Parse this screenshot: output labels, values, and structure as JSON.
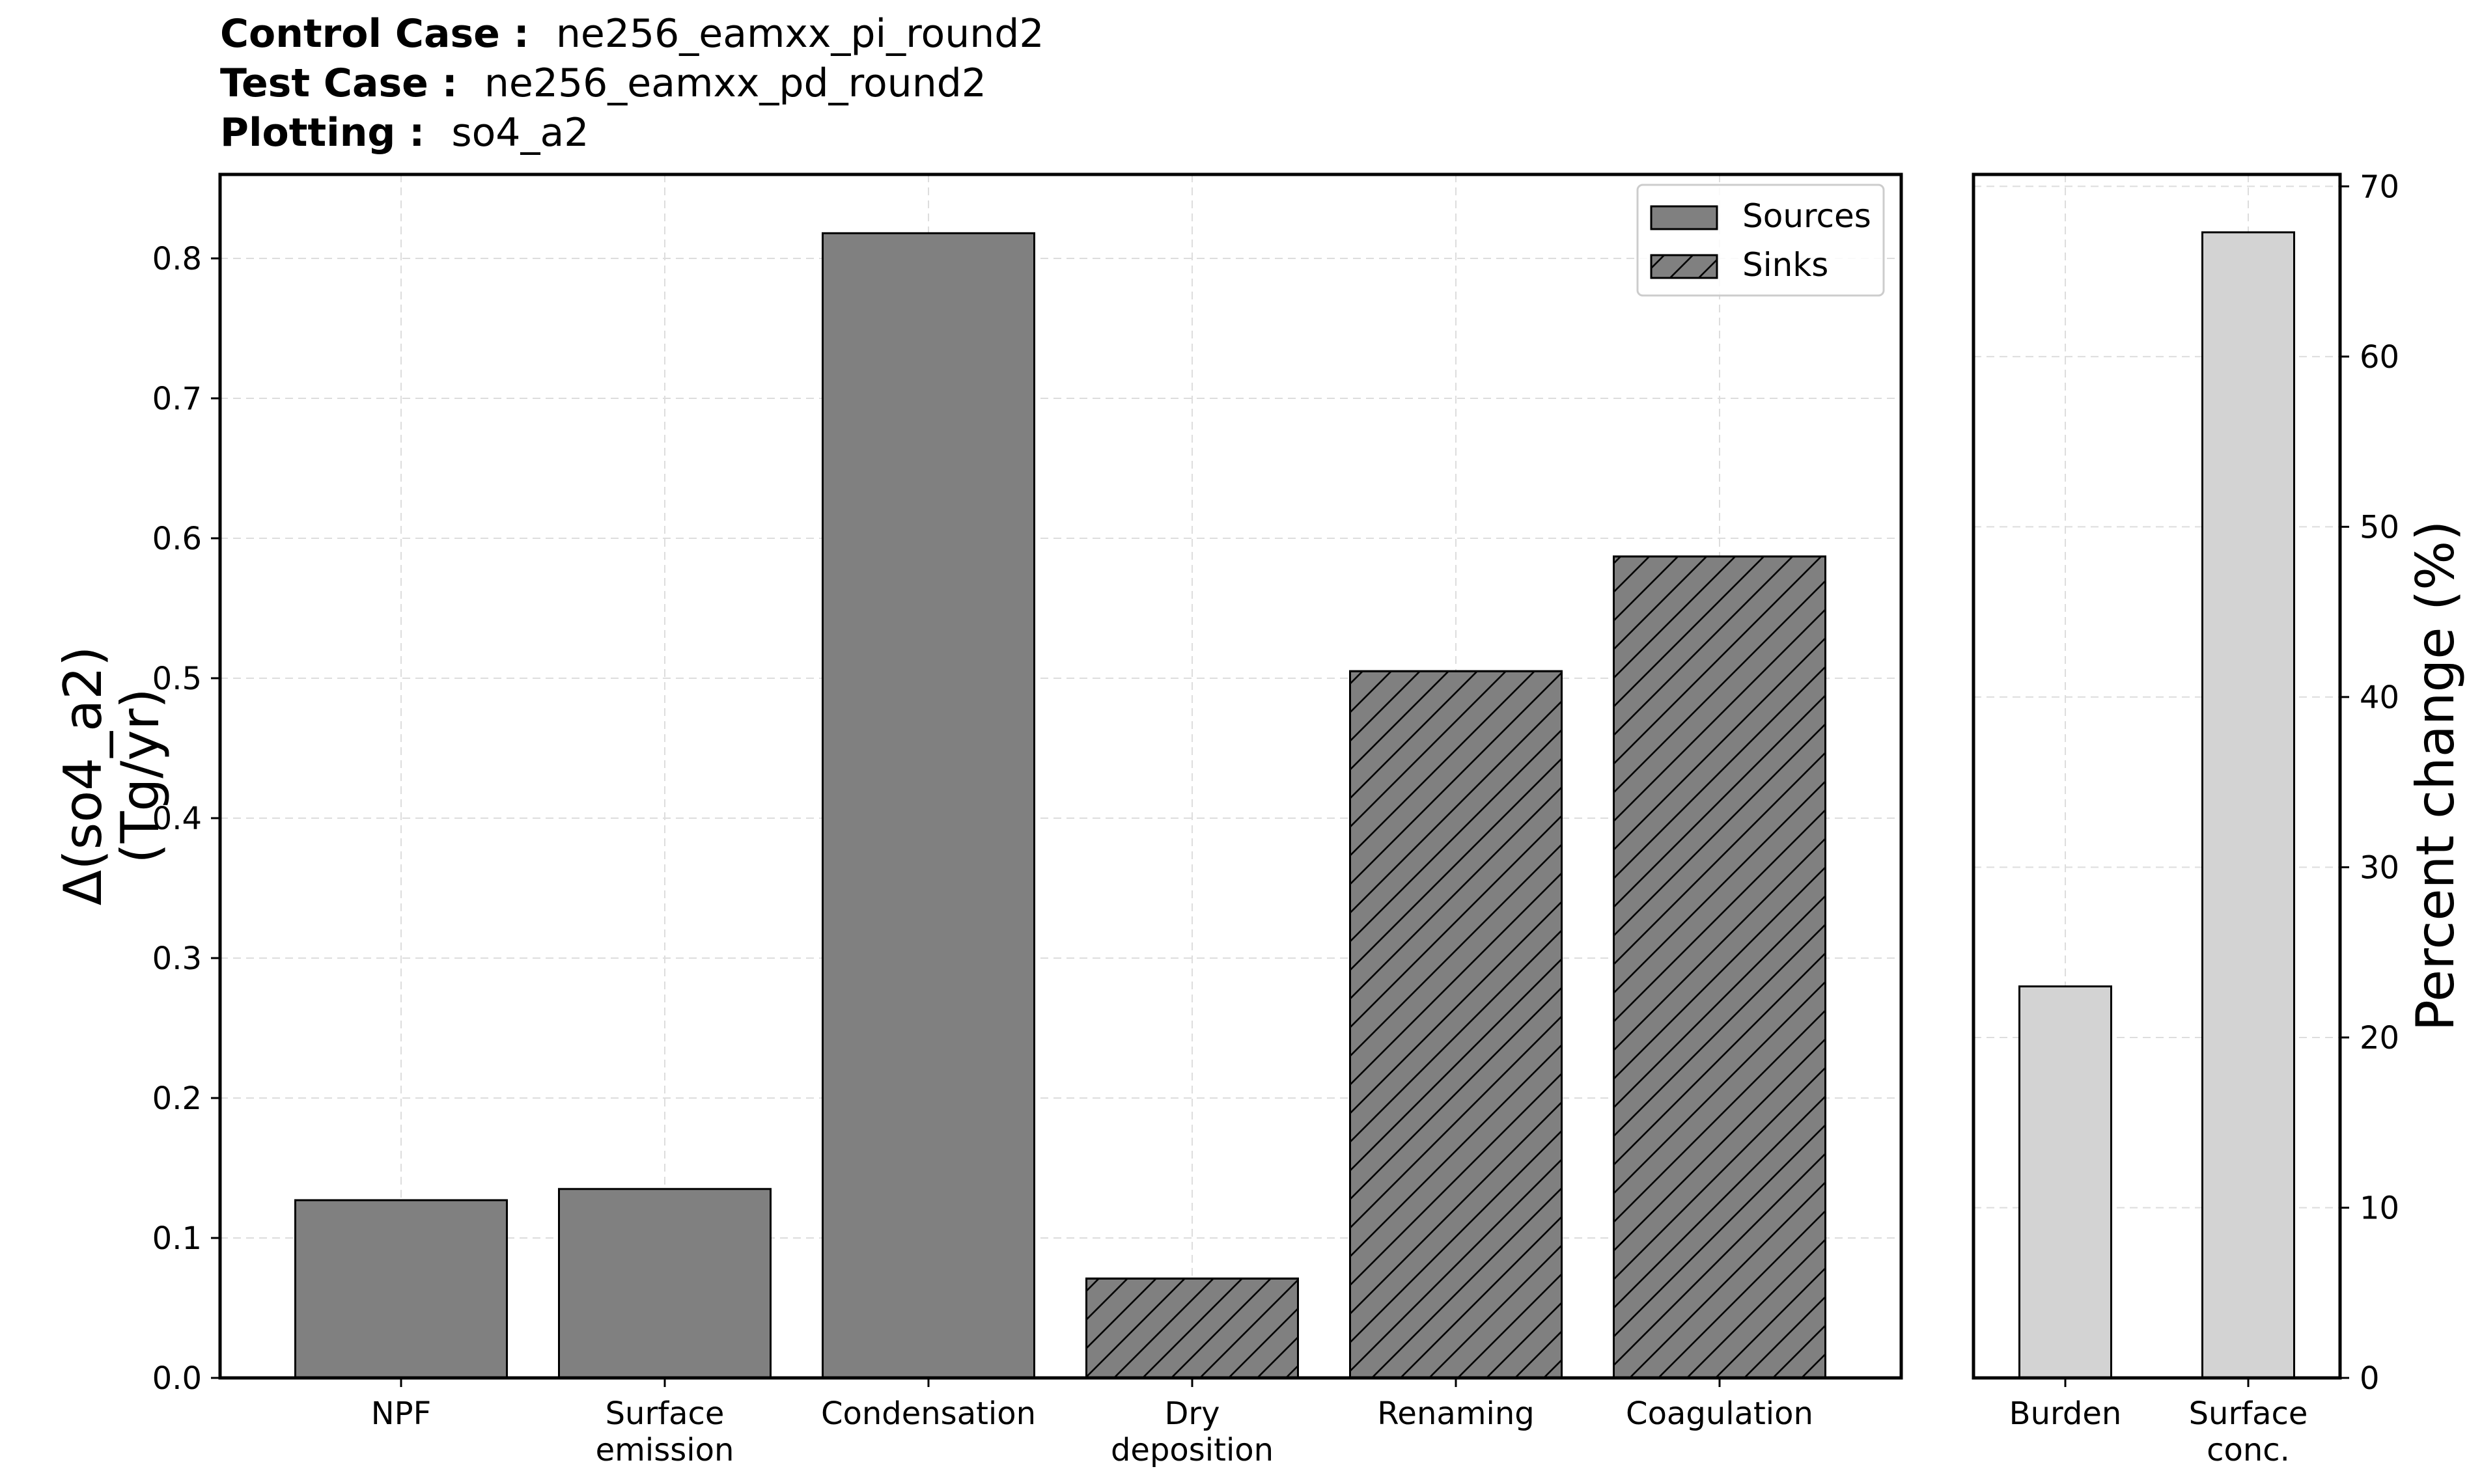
{
  "header": {
    "lines": [
      {
        "key": "Control Case :",
        "value": "ne256_eamxx_pi_round2"
      },
      {
        "key": "Test Case :",
        "value": "ne256_eamxx_pd_round2"
      },
      {
        "key": "Plotting :",
        "value": "so4_a2"
      }
    ]
  },
  "chart_data": [
    {
      "type": "bar",
      "ylabel_lines": [
        "Δ(so4_a2)",
        "(Tg/yr)"
      ],
      "ylim": [
        0,
        0.86
      ],
      "yticks": [
        0.0,
        0.1,
        0.2,
        0.3,
        0.4,
        0.5,
        0.6,
        0.7,
        0.8
      ],
      "ytick_labels": [
        "0.0",
        "0.1",
        "0.2",
        "0.3",
        "0.4",
        "0.5",
        "0.6",
        "0.7",
        "0.8"
      ],
      "grid": true,
      "legend_position": "top-right",
      "legend": [
        {
          "label": "Sources",
          "hatch": false
        },
        {
          "label": "Sinks",
          "hatch": true
        }
      ],
      "bar_color": "#808080",
      "categories": [
        {
          "label_lines": [
            "NPF"
          ],
          "value": 0.127,
          "group": "Sources"
        },
        {
          "label_lines": [
            "Surface",
            "emission"
          ],
          "value": 0.135,
          "group": "Sources"
        },
        {
          "label_lines": [
            "Condensation"
          ],
          "value": 0.818,
          "group": "Sources"
        },
        {
          "label_lines": [
            "Dry",
            "deposition"
          ],
          "value": 0.071,
          "group": "Sinks"
        },
        {
          "label_lines": [
            "Renaming"
          ],
          "value": 0.505,
          "group": "Sinks"
        },
        {
          "label_lines": [
            "Coagulation"
          ],
          "value": 0.587,
          "group": "Sinks"
        }
      ]
    },
    {
      "type": "bar",
      "ylabel": "Percent change (%)",
      "ylim": [
        0,
        70.7
      ],
      "yticks": [
        0,
        10,
        20,
        30,
        40,
        50,
        60,
        70
      ],
      "ytick_labels": [
        "0",
        "10",
        "20",
        "30",
        "40",
        "50",
        "60",
        "70"
      ],
      "axis_side": "right",
      "grid": true,
      "bar_color": "#d3d3d3",
      "categories": [
        {
          "label_lines": [
            "Burden"
          ],
          "value": 23.0
        },
        {
          "label_lines": [
            "Surface",
            "conc."
          ],
          "value": 67.3
        }
      ]
    }
  ]
}
